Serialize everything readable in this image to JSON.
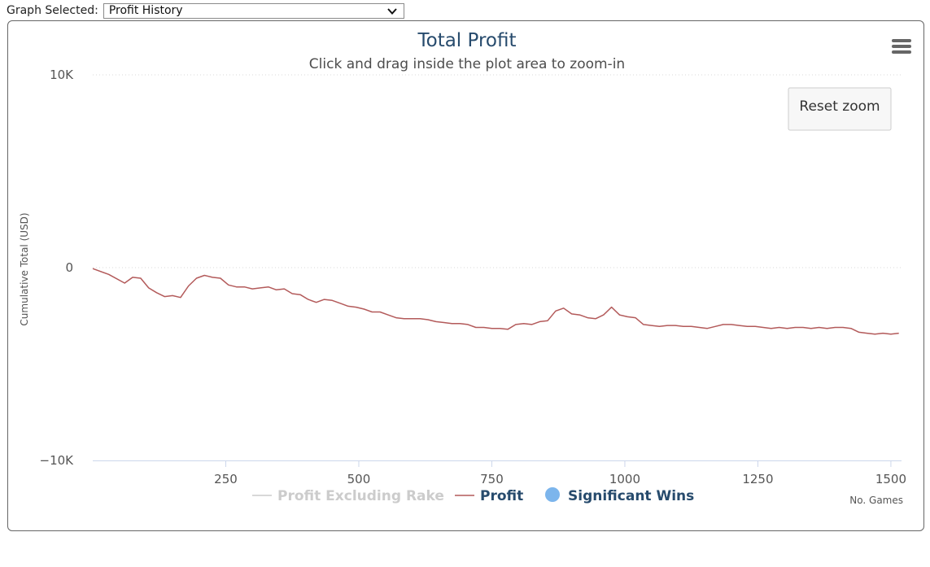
{
  "graph_selector": {
    "label": "Graph Selected:",
    "value": "Profit History"
  },
  "chart_controls": {
    "menu_icon": "hamburger-menu-icon",
    "reset_label": "Reset zoom"
  },
  "chart_data": {
    "type": "line",
    "title": "Total Profit",
    "subtitle": "Click and drag inside the plot area to zoom-in",
    "ylabel": "Cumulative Total (USD)",
    "xlabel": "No. Games",
    "ylim": [
      -10000,
      10000
    ],
    "xlim": [
      0,
      1520
    ],
    "y_ticks": [
      {
        "v": 10000,
        "label": "10K"
      },
      {
        "v": 0,
        "label": "0"
      },
      {
        "v": -10000,
        "label": "−10K"
      }
    ],
    "x_ticks": [
      {
        "v": 250,
        "label": "250"
      },
      {
        "v": 500,
        "label": "500"
      },
      {
        "v": 750,
        "label": "750"
      },
      {
        "v": 1000,
        "label": "1000"
      },
      {
        "v": 1250,
        "label": "1250"
      },
      {
        "v": 1500,
        "label": "1500"
      }
    ],
    "grid": "horizontal dotted",
    "legend_position": "bottom-center",
    "legend": [
      {
        "name": "Profit Excluding Rake",
        "color": "#cccccc",
        "symbol": "line",
        "state": "hidden"
      },
      {
        "name": "Profit",
        "color": "#b35a5a",
        "symbol": "line",
        "state": "visible"
      },
      {
        "name": "Significant Wins",
        "color": "#7cb5ec",
        "symbol": "circle",
        "state": "visible"
      }
    ],
    "series": [
      {
        "name": "Profit",
        "color": "#b35a5a",
        "x": [
          0,
          30,
          60,
          75,
          90,
          105,
          120,
          135,
          150,
          165,
          180,
          195,
          210,
          225,
          240,
          255,
          270,
          285,
          300,
          315,
          330,
          345,
          360,
          375,
          390,
          405,
          420,
          435,
          450,
          465,
          480,
          495,
          510,
          525,
          540,
          555,
          570,
          585,
          600,
          615,
          630,
          645,
          660,
          675,
          690,
          705,
          720,
          735,
          750,
          765,
          780,
          795,
          810,
          825,
          840,
          855,
          870,
          885,
          900,
          915,
          930,
          945,
          960,
          975,
          990,
          1005,
          1020,
          1035,
          1050,
          1065,
          1080,
          1095,
          1110,
          1125,
          1140,
          1155,
          1170,
          1185,
          1200,
          1215,
          1230,
          1245,
          1260,
          1275,
          1290,
          1305,
          1320,
          1335,
          1350,
          1365,
          1380,
          1395,
          1410,
          1425,
          1440,
          1455,
          1470,
          1485,
          1500,
          1515
        ],
        "values": [
          -50,
          -350,
          -800,
          -500,
          -550,
          -1050,
          -1300,
          -1500,
          -1450,
          -1550,
          -950,
          -550,
          -400,
          -500,
          -550,
          -900,
          -1000,
          -1000,
          -1100,
          -1050,
          -1000,
          -1150,
          -1100,
          -1350,
          -1400,
          -1650,
          -1800,
          -1650,
          -1700,
          -1850,
          -2000,
          -2050,
          -2150,
          -2300,
          -2300,
          -2450,
          -2600,
          -2650,
          -2650,
          -2650,
          -2700,
          -2800,
          -2850,
          -2900,
          -2900,
          -2950,
          -3100,
          -3100,
          -3150,
          -3150,
          -3200,
          -2950,
          -2900,
          -2950,
          -2800,
          -2750,
          -2250,
          -2100,
          -2400,
          -2450,
          -2600,
          -2650,
          -2450,
          -2050,
          -2450,
          -2550,
          -2600,
          -2950,
          -3000,
          -3050,
          -3000,
          -3000,
          -3050,
          -3050,
          -3100,
          -3150,
          -3050,
          -2950,
          -2950,
          -3000,
          -3050,
          -3050,
          -3100,
          -3150,
          -3100,
          -3150,
          -3100,
          -3100,
          -3150,
          -3100,
          -3150,
          -3100,
          -3100,
          -3150,
          -3350,
          -3400,
          -3450,
          -3400,
          -3450,
          -3400
        ]
      }
    ]
  }
}
